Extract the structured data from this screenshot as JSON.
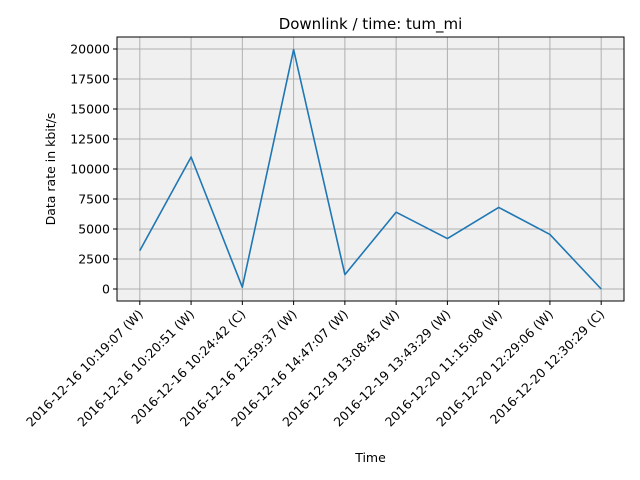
{
  "chart_data": {
    "type": "line",
    "title": "Downlink / time: tum_mi",
    "xlabel": "Time",
    "ylabel": "Data rate in kbit/s",
    "categories": [
      "2016-12-16 10:19:07 (W)",
      "2016-12-16 10:20:51 (W)",
      "2016-12-16 10:24:42 (C)",
      "2016-12-16 12:59:37 (W)",
      "2016-12-16 14:47:07 (W)",
      "2016-12-19 13:08:45 (W)",
      "2016-12-19 13:43:29 (W)",
      "2016-12-20 11:15:08 (W)",
      "2016-12-20 12:29:06 (W)",
      "2016-12-20 12:30:29 (C)"
    ],
    "series": [
      {
        "values": [
          3200,
          11000,
          150,
          19950,
          1200,
          6400,
          4200,
          6800,
          4550,
          0
        ],
        "color": "#1f77b4"
      }
    ],
    "yticks": [
      0,
      2500,
      5000,
      7500,
      10000,
      12500,
      15000,
      17500,
      20000
    ],
    "ylim": [
      -1000,
      21000
    ],
    "grid": true,
    "legend": "none",
    "plot_background": "#f0f0f0"
  }
}
